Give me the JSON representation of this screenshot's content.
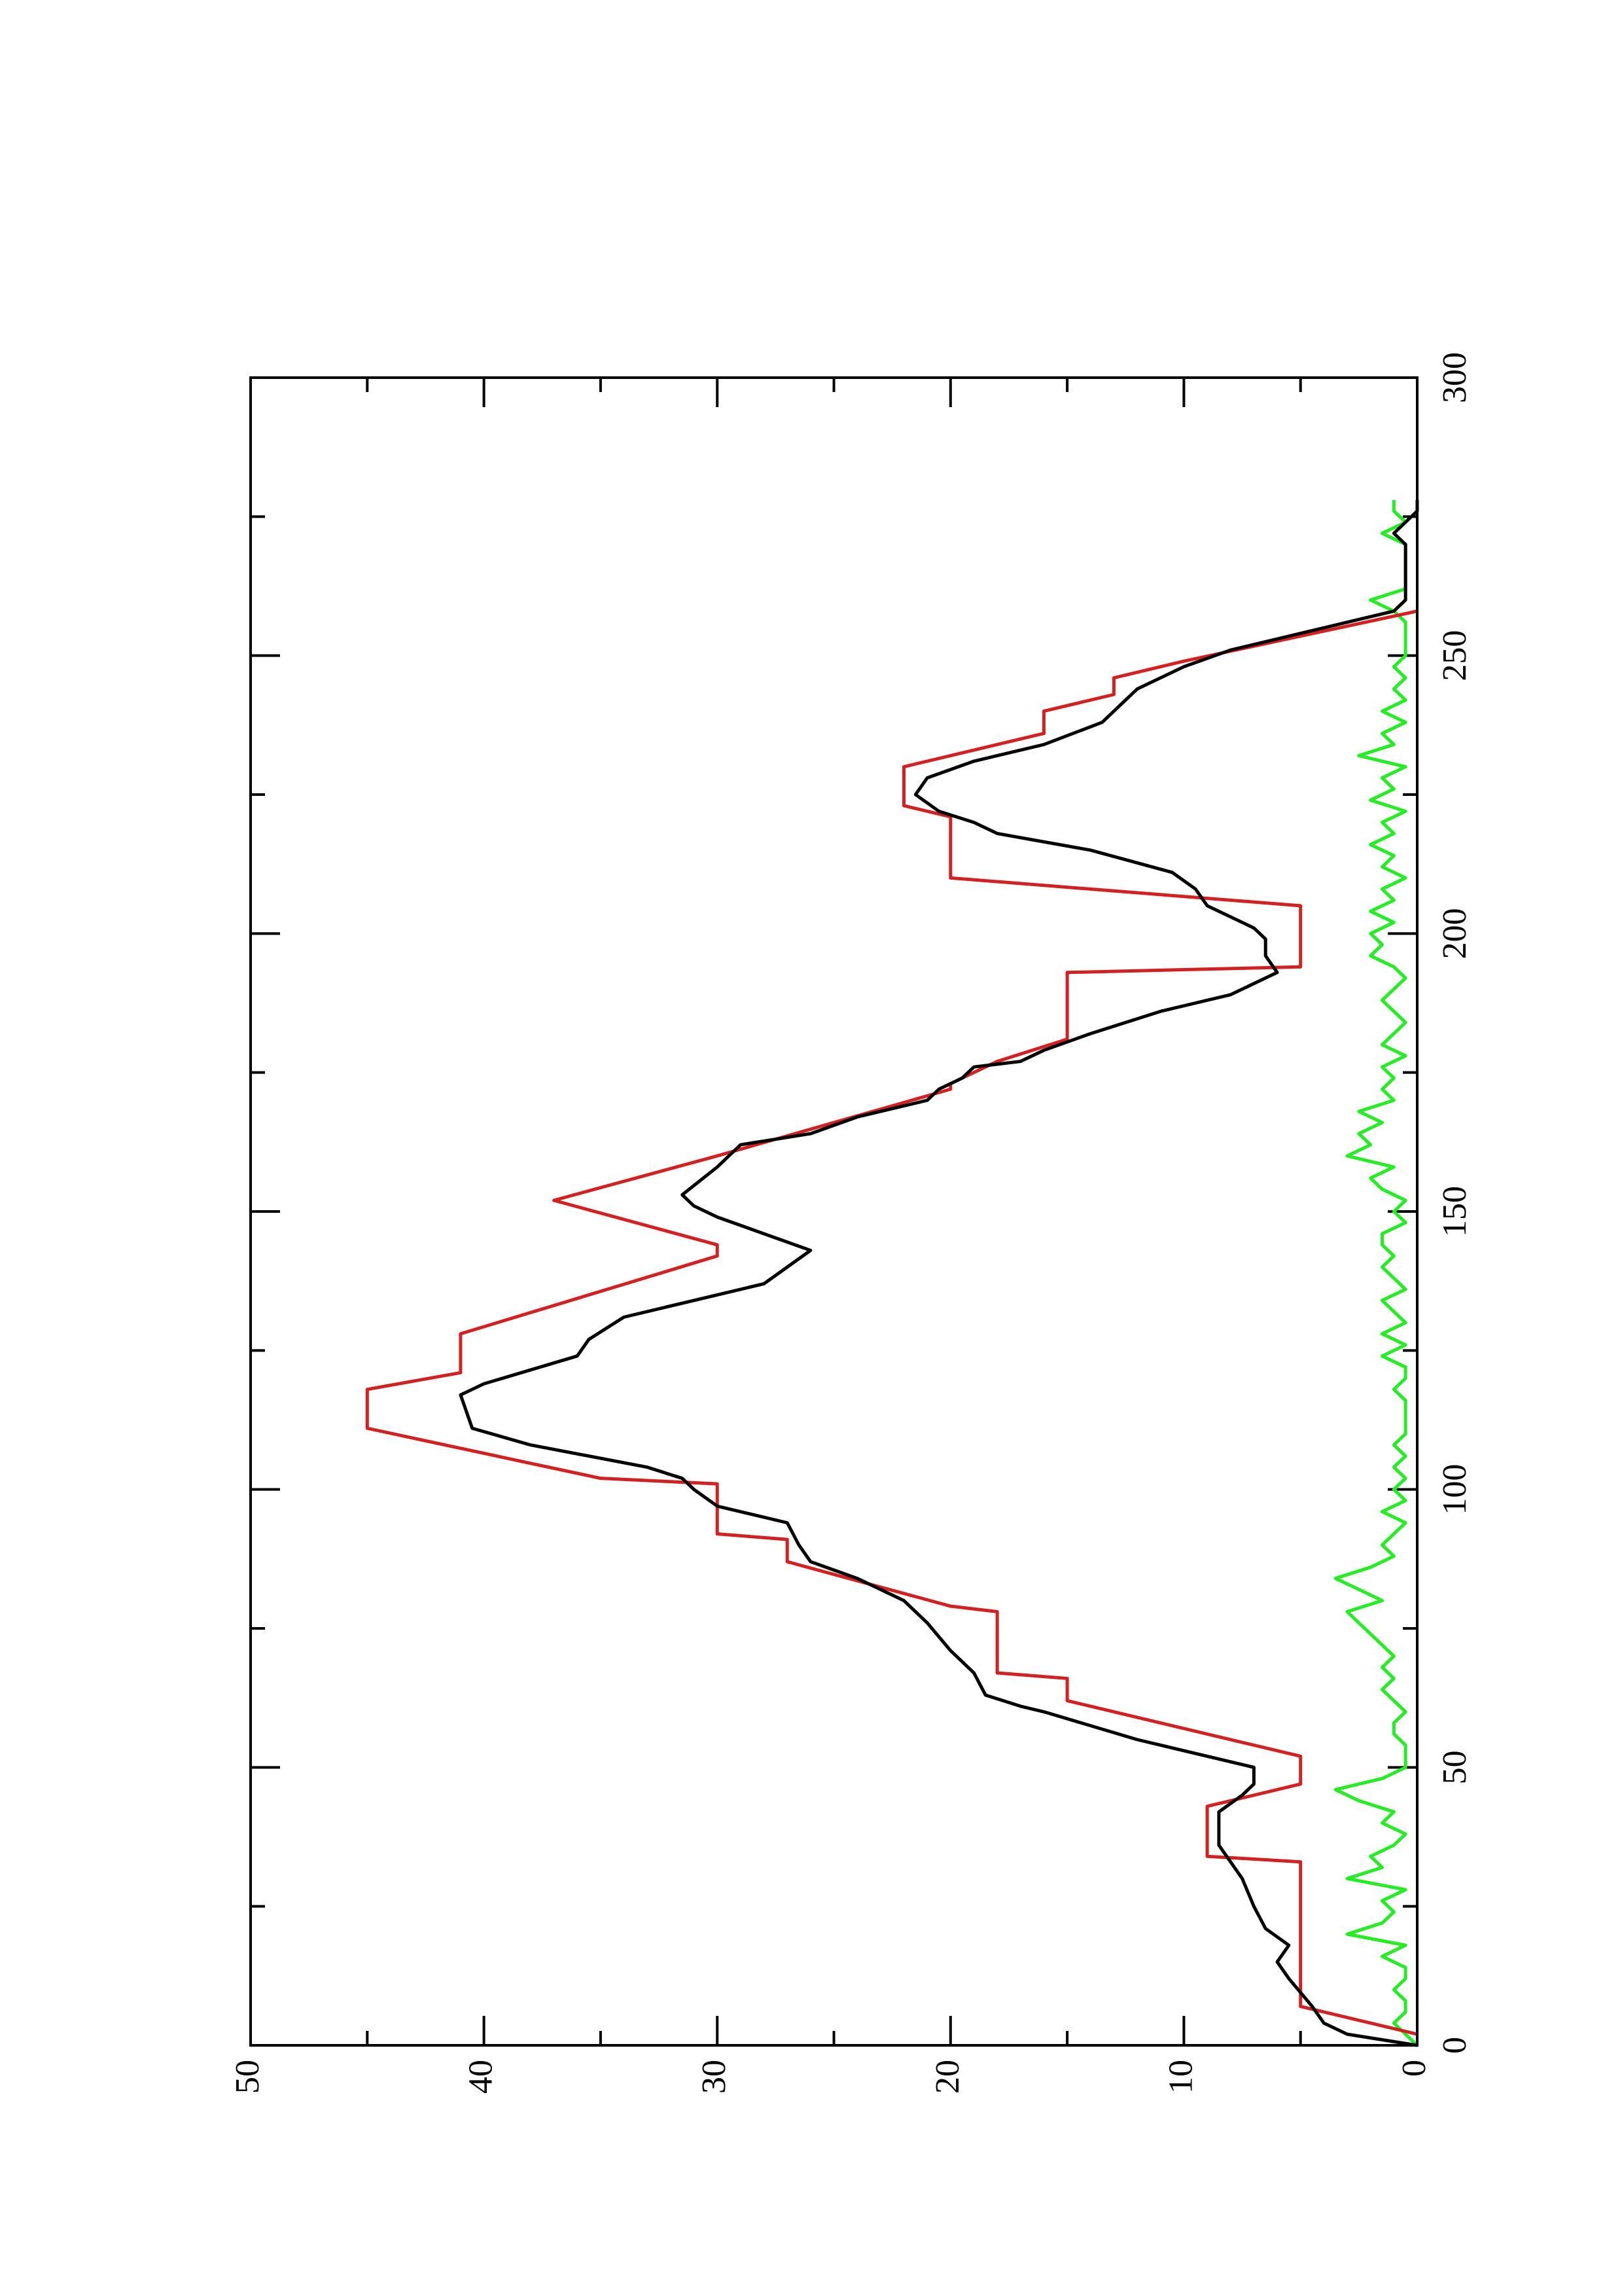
{
  "chart_data": {
    "type": "line",
    "xlim": [
      0,
      300
    ],
    "xticks": [
      0,
      50,
      100,
      150,
      200,
      250,
      300
    ],
    "xminorticks": [
      25,
      75,
      125,
      175,
      225,
      275
    ],
    "ylim": [
      0,
      50
    ],
    "yticks": [
      0,
      10,
      20,
      30,
      40,
      50
    ],
    "yminorticks": [
      5,
      15,
      25,
      35,
      45
    ],
    "grid": false,
    "series": [
      {
        "color": "#d42020",
        "x": [
          2,
          7,
          33,
          34,
          43,
          47,
          52,
          62,
          66,
          67,
          78,
          79,
          87,
          91,
          92,
          101,
          102,
          111,
          118,
          121,
          128,
          142,
          144,
          152,
          160,
          172,
          173,
          177,
          181,
          193,
          194,
          205,
          210,
          221,
          223,
          230,
          236,
          240,
          243,
          246,
          249,
          258
        ],
        "values": [
          0,
          5,
          5,
          9,
          9,
          5,
          5,
          15,
          15,
          18,
          18,
          20,
          27,
          27,
          30,
          30,
          35,
          45,
          45,
          41,
          41,
          30,
          30,
          37,
          30,
          20,
          20,
          18,
          15,
          15,
          5,
          5,
          20,
          20,
          22,
          22,
          16,
          16,
          13,
          13,
          10,
          0
        ]
      },
      {
        "color": "#000000",
        "x": [
          0,
          2,
          4,
          7,
          12,
          15,
          18,
          21,
          25,
          30,
          33,
          36,
          42,
          45,
          47,
          50,
          55,
          60,
          61,
          63,
          67,
          71,
          76,
          80,
          84,
          87,
          90,
          94,
          97,
          100,
          102,
          104,
          108,
          111,
          117,
          119,
          124,
          127,
          131,
          135,
          137,
          140,
          143,
          146,
          149,
          151,
          153,
          158,
          162,
          164,
          167,
          170,
          172,
          174,
          176,
          177,
          179,
          182,
          186,
          189,
          193,
          196,
          199,
          201,
          205,
          208,
          211,
          215,
          218,
          220,
          222,
          225,
          228,
          231,
          234,
          238,
          240,
          244,
          248,
          251,
          254,
          256,
          258,
          260,
          265,
          270,
          272,
          276,
          278
        ],
        "values": [
          0,
          3,
          4,
          4.5,
          5.5,
          6,
          5.5,
          6.5,
          7,
          7.5,
          8,
          8.5,
          8.5,
          7.5,
          7,
          7,
          12,
          16,
          17,
          18.5,
          19,
          20,
          21,
          22,
          24,
          26,
          26.5,
          27,
          30,
          31,
          31.5,
          33,
          38,
          40.5,
          41,
          40,
          36,
          35.5,
          34,
          30,
          28,
          27,
          26,
          28,
          30,
          31,
          31.5,
          30,
          29,
          26,
          24,
          21,
          20.5,
          19.5,
          19,
          17,
          16,
          14,
          11,
          8,
          6,
          6.5,
          6.5,
          7,
          9,
          9.5,
          10.5,
          14,
          18,
          19,
          20.5,
          21.5,
          21,
          19,
          16,
          13.5,
          13,
          12,
          10,
          8,
          5,
          3,
          1,
          0.5,
          0.5,
          0.5,
          1,
          0,
          0
        ]
      },
      {
        "color": "#22ee22",
        "x": [
          0,
          2,
          4,
          6,
          8,
          10,
          12,
          14,
          16,
          18,
          20,
          22,
          24,
          26,
          28,
          30,
          32,
          34,
          36,
          38,
          40,
          42,
          44,
          46,
          48,
          50,
          52,
          54,
          56,
          58,
          60,
          62,
          64,
          66,
          68,
          70,
          72,
          74,
          76,
          78,
          80,
          82,
          84,
          86,
          88,
          90,
          92,
          94,
          96,
          98,
          100,
          102,
          104,
          106,
          108,
          110,
          112,
          114,
          116,
          118,
          120,
          122,
          124,
          126,
          128,
          130,
          132,
          134,
          136,
          138,
          140,
          142,
          144,
          146,
          148,
          150,
          152,
          154,
          156,
          158,
          160,
          162,
          164,
          166,
          168,
          170,
          172,
          174,
          176,
          178,
          180,
          182,
          184,
          186,
          188,
          190,
          192,
          194,
          196,
          198,
          200,
          202,
          204,
          206,
          208,
          210,
          212,
          214,
          216,
          218,
          220,
          222,
          224,
          226,
          228,
          230,
          232,
          234,
          236,
          238,
          240,
          242,
          244,
          246,
          248,
          250,
          252,
          254,
          256,
          258,
          260,
          262,
          264,
          266,
          268,
          270,
          272,
          274,
          276,
          278
        ],
        "values": [
          0,
          0.5,
          1,
          0.5,
          0.5,
          1,
          0.5,
          0.5,
          1.5,
          0.5,
          3,
          1.5,
          1,
          1.5,
          0.5,
          3,
          1.5,
          2,
          1,
          0.5,
          1.5,
          1,
          2.5,
          3.5,
          1.5,
          0.5,
          0.5,
          0.5,
          1,
          1,
          0.5,
          1,
          1.5,
          1,
          1.5,
          1,
          1.5,
          2,
          2.5,
          3,
          1.5,
          2.5,
          3.5,
          2,
          1,
          1.5,
          1,
          0.5,
          1.5,
          0.5,
          1,
          0.5,
          1,
          0.5,
          1,
          0.5,
          0.5,
          0.5,
          0.5,
          1,
          0.5,
          0.5,
          1.5,
          0.5,
          1.5,
          0.5,
          1,
          1.5,
          0.5,
          1,
          1.5,
          1,
          1.5,
          1.5,
          0.5,
          1,
          0.5,
          1.5,
          2,
          1,
          3,
          2,
          2.5,
          1.5,
          2.5,
          1,
          1.5,
          1,
          1.5,
          0.5,
          1.5,
          1,
          0.5,
          1,
          1.5,
          1,
          0.5,
          1,
          2,
          1.5,
          2,
          1,
          2,
          1,
          1.5,
          0.5,
          1.5,
          1,
          2,
          1,
          1.5,
          0.5,
          2,
          1,
          1.5,
          0.5,
          2.5,
          1,
          1.5,
          0.5,
          1.5,
          0.5,
          1,
          0.5,
          1,
          0.5,
          0.5,
          0.5,
          0.5,
          1,
          2,
          0.5,
          0.5,
          0.5,
          0.5,
          0.5,
          1.5,
          0.5,
          1,
          1
        ]
      }
    ]
  }
}
